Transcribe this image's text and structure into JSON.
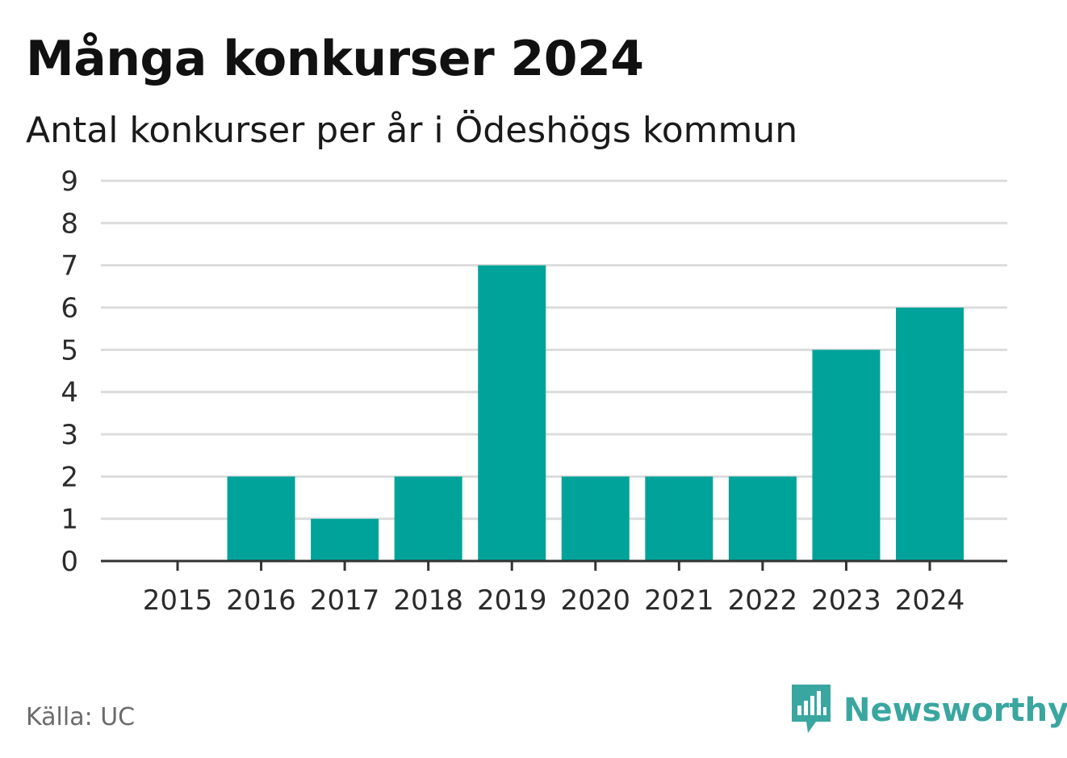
{
  "header": {
    "title": "Många konkurser 2024",
    "subtitle": "Antal konkurser per år i Ödeshögs kommun"
  },
  "footer": {
    "source": "Källa: UC",
    "brand": "Newsworthy",
    "brand_icon": "newsworthy-logo-icon"
  },
  "colors": {
    "bar": "#00a39a",
    "grid": "#dcdcdc",
    "axis": "#333333",
    "brand": "#3aa6a0"
  },
  "chart_data": {
    "type": "bar",
    "title": "Många konkurser 2024",
    "subtitle": "Antal konkurser per år i Ödeshögs kommun",
    "xlabel": "",
    "ylabel": "",
    "categories": [
      "2015",
      "2016",
      "2017",
      "2018",
      "2019",
      "2020",
      "2021",
      "2022",
      "2023",
      "2024"
    ],
    "values": [
      0,
      2,
      1,
      2,
      7,
      2,
      2,
      2,
      5,
      6
    ],
    "ylim": [
      0,
      9
    ],
    "yticks": [
      0,
      1,
      2,
      3,
      4,
      5,
      6,
      7,
      8,
      9
    ],
    "grid": true,
    "legend": "none"
  }
}
